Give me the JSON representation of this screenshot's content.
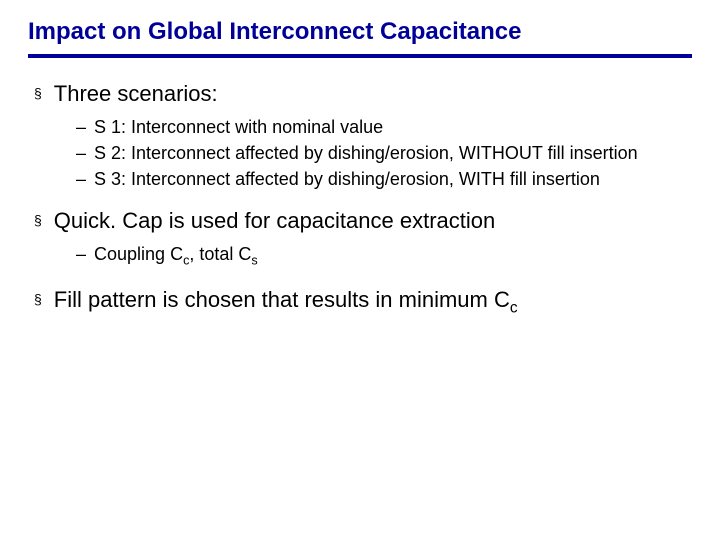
{
  "title": "Impact on Global Interconnect Capacitance",
  "title_color": "#000099",
  "underline_color": "#000099",
  "bullets": {
    "b1": {
      "text": "Three scenarios:",
      "subs": {
        "s1": "S 1: Interconnect with nominal value",
        "s2": "S 2: Interconnect affected by dishing/erosion, WITHOUT fill insertion",
        "s3": "S 3: Interconnect affected by dishing/erosion, WITH fill insertion"
      }
    },
    "b2": {
      "text_pre": "Quick. Cap is used for capacitance extraction",
      "subs": {
        "s1_pre": "Coupling C",
        "s1_sub1": "c",
        "s1_mid": ", total C",
        "s1_sub2": "s"
      }
    },
    "b3": {
      "text_pre": "Fill pattern is chosen that results in minimum C",
      "text_sub": "c"
    }
  },
  "marker_l1": "§",
  "marker_l2": "–"
}
